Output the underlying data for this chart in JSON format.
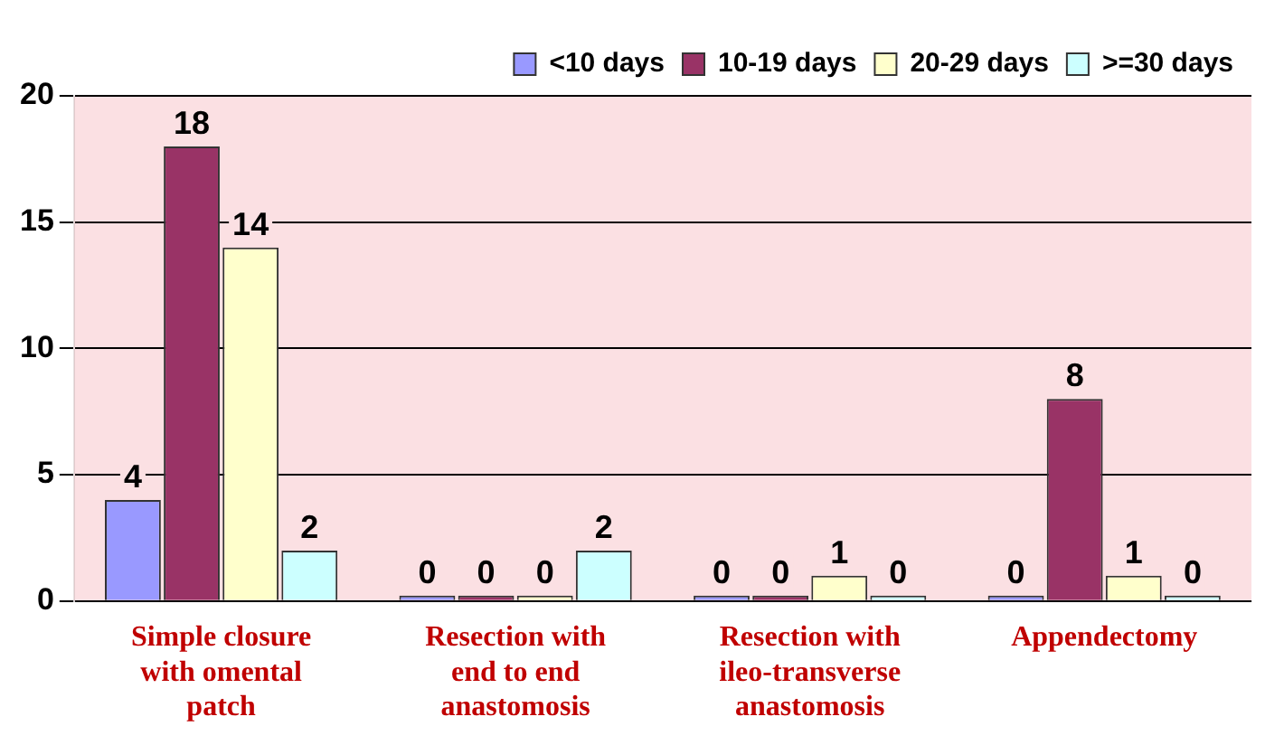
{
  "chart_data": {
    "type": "bar",
    "categories": [
      "Simple closure with omental patch",
      "Resection with end to end anastomosis",
      "Resection with ileo-transverse anastomosis",
      "Appendectomy"
    ],
    "series": [
      {
        "name": "<10 days",
        "color": "#9999ff",
        "values": [
          4,
          0,
          0,
          0
        ]
      },
      {
        "name": "10-19 days",
        "color": "#993366",
        "values": [
          18,
          0,
          0,
          8
        ]
      },
      {
        "name": "20-29 days",
        "color": "#ffffcc",
        "values": [
          14,
          0,
          1,
          1
        ]
      },
      {
        "name": ">=30 days",
        "color": "#ccffff",
        "values": [
          2,
          2,
          0,
          0
        ]
      }
    ],
    "ylim": [
      0,
      20
    ],
    "yticks": [
      0,
      5,
      10,
      15,
      20
    ],
    "grid": "y",
    "legend": "top right",
    "data_labels": true
  }
}
